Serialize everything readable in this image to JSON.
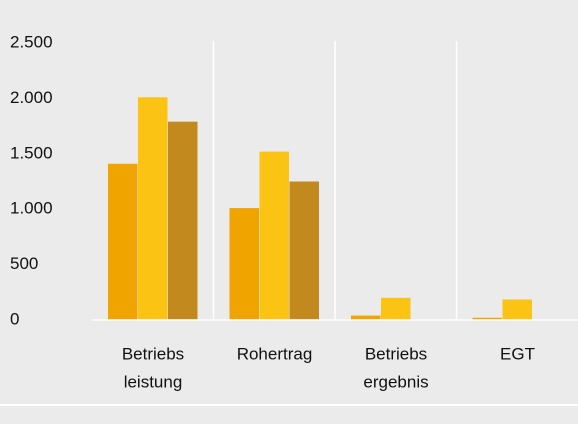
{
  "chart_data": {
    "type": "bar",
    "categories": [
      [
        "Betriebs",
        "leistung"
      ],
      [
        "Rohertrag"
      ],
      [
        "Betriebs",
        "ergebnis"
      ],
      [
        "EGT"
      ]
    ],
    "series": [
      {
        "color": "#f0a400",
        "values": [
          1410,
          1010,
          40,
          20
        ]
      },
      {
        "color": "#fbc313",
        "values": [
          2010,
          1520,
          200,
          185
        ]
      },
      {
        "color": "#c2891f",
        "values": [
          1790,
          1250,
          0,
          0
        ]
      }
    ],
    "ylim": [
      0,
      2500
    ],
    "yticks": [
      0,
      500,
      {
        "value": 1000,
        "label": "1.000"
      },
      {
        "value": 1500,
        "label": "1.500"
      },
      {
        "value": 2000,
        "label": "2.000"
      },
      {
        "value": 2500,
        "label": "2.500"
      }
    ]
  }
}
